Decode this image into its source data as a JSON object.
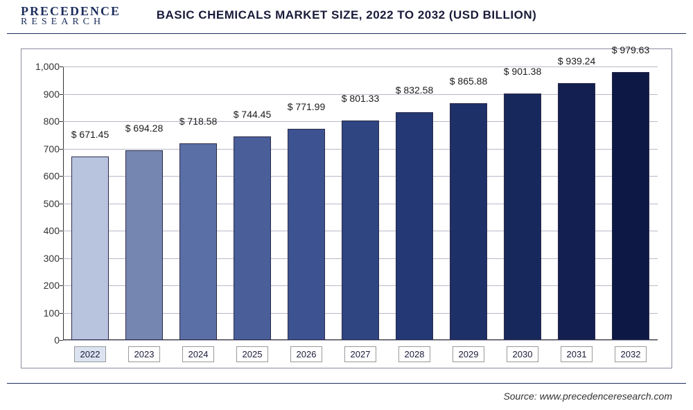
{
  "logo": {
    "line1": "PRECEDENCE",
    "line2": "RESEARCH"
  },
  "chart": {
    "type": "bar",
    "title": "BASIC CHEMICALS MARKET SIZE, 2022 TO 2032 (USD BILLION)",
    "categories": [
      "2022",
      "2023",
      "2024",
      "2025",
      "2026",
      "2027",
      "2028",
      "2029",
      "2030",
      "2031",
      "2032"
    ],
    "values": [
      671.45,
      694.28,
      718.58,
      744.45,
      771.99,
      801.33,
      832.58,
      865.88,
      901.38,
      939.24,
      979.63
    ],
    "value_labels": [
      "$ 671.45",
      "$ 694.28",
      "$ 718.58",
      "$ 744.45",
      "$ 771.99",
      "$ 801.33",
      "$ 832.58",
      "$ 865.88",
      "$ 901.38",
      "$ 939.24",
      "$ 979.63"
    ],
    "bar_colors": [
      "#b8c4de",
      "#7586b0",
      "#5a6fa5",
      "#4a5f9a",
      "#3d5290",
      "#2f4582",
      "#233874",
      "#1d3068",
      "#17285c",
      "#121f50",
      "#0d1844"
    ],
    "ylim": [
      0,
      1000
    ],
    "ytick_step": 100,
    "yticks": [
      0,
      100,
      200,
      300,
      400,
      500,
      600,
      700,
      800,
      900,
      1000
    ],
    "ytick_labels": [
      "0",
      "100",
      "200",
      "300",
      "400",
      "500",
      "600",
      "700",
      "800",
      "900",
      "1,000"
    ],
    "background_color": "#ffffff",
    "grid_color": "#b8b8c8",
    "title_fontsize": 17,
    "label_fontsize": 14,
    "bar_width": 0.7
  },
  "source": {
    "label": "Source: www.precedenceresearch.com"
  }
}
